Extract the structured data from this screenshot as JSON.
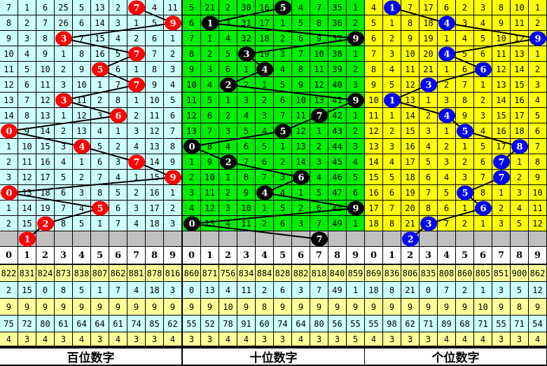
{
  "colors": {
    "gray_row": "#c0c0c0",
    "stat_yellow": "#ffff99",
    "stat_cyan": "#ccffff"
  },
  "panels": [
    {
      "label": "百位数字",
      "bg": "#ccffff",
      "ball_color": "#ff0000",
      "rows": [
        [
          7,
          1,
          6,
          25,
          5,
          13,
          2,
          7,
          4,
          11
        ],
        [
          8,
          2,
          7,
          26,
          6,
          14,
          3,
          1,
          5,
          9
        ],
        [
          9,
          3,
          8,
          3,
          7,
          15,
          4,
          2,
          6,
          1
        ],
        [
          10,
          4,
          9,
          1,
          8,
          16,
          5,
          7,
          7,
          2
        ],
        [
          11,
          5,
          10,
          2,
          9,
          5,
          6,
          1,
          8,
          3
        ],
        [
          12,
          6,
          11,
          3,
          10,
          1,
          7,
          7,
          9,
          4
        ],
        [
          13,
          7,
          12,
          3,
          11,
          2,
          8,
          1,
          10,
          5
        ],
        [
          14,
          8,
          13,
          1,
          12,
          3,
          6,
          2,
          11,
          6
        ],
        [
          0,
          9,
          14,
          2,
          13,
          4,
          1,
          3,
          12,
          7
        ],
        [
          1,
          10,
          15,
          3,
          4,
          5,
          2,
          4,
          13,
          8
        ],
        [
          2,
          11,
          16,
          4,
          1,
          6,
          3,
          7,
          14,
          9
        ],
        [
          3,
          12,
          17,
          5,
          2,
          7,
          4,
          1,
          15,
          9
        ],
        [
          0,
          13,
          18,
          6,
          3,
          8,
          5,
          2,
          16,
          1
        ],
        [
          1,
          14,
          19,
          7,
          4,
          5,
          6,
          3,
          17,
          2
        ],
        [
          2,
          15,
          2,
          8,
          5,
          1,
          7,
          4,
          18,
          3
        ]
      ],
      "hits": [
        7,
        9,
        3,
        7,
        5,
        7,
        3,
        6,
        0,
        4,
        7,
        9,
        0,
        5,
        2
      ],
      "next": 1,
      "stats": [
        [
          822,
          831,
          824,
          873,
          838,
          807,
          862,
          881,
          878,
          816
        ],
        [
          2,
          15,
          0,
          8,
          5,
          1,
          7,
          4,
          18,
          3
        ],
        [
          9,
          9,
          9,
          9,
          9,
          9,
          9,
          9,
          9,
          9
        ],
        [
          75,
          72,
          80,
          61,
          64,
          64,
          61,
          74,
          85,
          62
        ],
        [
          4,
          3,
          4,
          3,
          4,
          3,
          4,
          3,
          3,
          4
        ]
      ]
    },
    {
      "label": "十位数字",
      "bg": "#00ee00",
      "ball_color": "#000000",
      "rows": [
        [
          5,
          21,
          2,
          30,
          16,
          5,
          4,
          7,
          35,
          1
        ],
        [
          6,
          1,
          3,
          31,
          17,
          1,
          5,
          8,
          36,
          2
        ],
        [
          7,
          1,
          4,
          32,
          18,
          2,
          6,
          9,
          37,
          9
        ],
        [
          8,
          2,
          5,
          3,
          19,
          3,
          7,
          10,
          38,
          1
        ],
        [
          9,
          3,
          6,
          1,
          4,
          4,
          8,
          11,
          39,
          2
        ],
        [
          10,
          4,
          2,
          2,
          1,
          5,
          9,
          12,
          40,
          3
        ],
        [
          11,
          5,
          1,
          3,
          2,
          6,
          10,
          13,
          41,
          9
        ],
        [
          12,
          6,
          2,
          4,
          3,
          7,
          11,
          7,
          42,
          1
        ],
        [
          13,
          7,
          3,
          5,
          4,
          5,
          12,
          1,
          43,
          2
        ],
        [
          0,
          8,
          4,
          6,
          5,
          1,
          13,
          2,
          44,
          3
        ],
        [
          1,
          9,
          2,
          7,
          6,
          2,
          14,
          3,
          45,
          4
        ],
        [
          2,
          10,
          1,
          8,
          7,
          3,
          6,
          4,
          46,
          5
        ],
        [
          3,
          11,
          2,
          9,
          4,
          4,
          1,
          5,
          47,
          6
        ],
        [
          4,
          12,
          3,
          10,
          1,
          5,
          2,
          6,
          48,
          9
        ],
        [
          0,
          13,
          4,
          11,
          2,
          6,
          3,
          7,
          49,
          1
        ]
      ],
      "hits": [
        5,
        1,
        9,
        3,
        4,
        2,
        9,
        7,
        5,
        0,
        2,
        6,
        4,
        9,
        0
      ],
      "next": 7,
      "stats": [
        [
          860,
          871,
          756,
          834,
          884,
          828,
          882,
          818,
          840,
          859
        ],
        [
          0,
          13,
          4,
          11,
          2,
          6,
          3,
          7,
          49,
          1
        ],
        [
          9,
          9,
          10,
          9,
          8,
          9,
          9,
          9,
          9,
          9
        ],
        [
          55,
          52,
          78,
          91,
          60,
          74,
          64,
          80,
          56,
          55
        ],
        [
          3,
          3,
          4,
          4,
          3,
          3,
          4,
          3,
          3,
          5
        ]
      ]
    },
    {
      "label": "个位数字",
      "bg": "#ffff00",
      "ball_color": "#0000ff",
      "rows": [
        [
          4,
          1,
          7,
          17,
          6,
          2,
          3,
          8,
          10,
          1
        ],
        [
          5,
          1,
          8,
          18,
          4,
          3,
          4,
          9,
          11,
          2
        ],
        [
          6,
          2,
          9,
          19,
          1,
          4,
          5,
          10,
          12,
          9
        ],
        [
          7,
          3,
          10,
          20,
          4,
          5,
          6,
          11,
          13,
          1
        ],
        [
          8,
          4,
          11,
          21,
          1,
          6,
          6,
          12,
          14,
          2
        ],
        [
          9,
          5,
          12,
          3,
          2,
          7,
          1,
          13,
          15,
          3
        ],
        [
          10,
          1,
          13,
          1,
          3,
          8,
          2,
          14,
          16,
          4
        ],
        [
          11,
          1,
          14,
          2,
          4,
          9,
          3,
          15,
          17,
          5
        ],
        [
          12,
          2,
          15,
          3,
          1,
          5,
          4,
          16,
          18,
          6
        ],
        [
          13,
          3,
          16,
          4,
          2,
          1,
          5,
          17,
          8,
          7
        ],
        [
          14,
          4,
          17,
          5,
          3,
          2,
          6,
          7,
          1,
          8
        ],
        [
          15,
          5,
          18,
          6,
          4,
          3,
          7,
          7,
          2,
          9
        ],
        [
          16,
          6,
          19,
          7,
          5,
          5,
          8,
          1,
          3,
          10
        ],
        [
          17,
          7,
          20,
          8,
          6,
          1,
          6,
          2,
          4,
          11
        ],
        [
          18,
          8,
          21,
          3,
          7,
          2,
          1,
          3,
          5,
          12
        ]
      ],
      "hits": [
        1,
        4,
        9,
        4,
        6,
        3,
        1,
        4,
        5,
        8,
        7,
        7,
        5,
        6,
        3
      ],
      "next": 2,
      "stats": [
        [
          869,
          836,
          806,
          835,
          808,
          860,
          805,
          851,
          900,
          862
        ],
        [
          18,
          8,
          21,
          0,
          7,
          2,
          1,
          3,
          5,
          12
        ],
        [
          9,
          9,
          9,
          9,
          9,
          9,
          10,
          9,
          8,
          9
        ],
        [
          55,
          98,
          62,
          71,
          89,
          68,
          71,
          55,
          71,
          54
        ],
        [
          4,
          3,
          3,
          3,
          4,
          4,
          4,
          3,
          3,
          4
        ]
      ]
    }
  ],
  "digits": [
    "0",
    "1",
    "2",
    "3",
    "4",
    "5",
    "6",
    "7",
    "8",
    "9"
  ]
}
